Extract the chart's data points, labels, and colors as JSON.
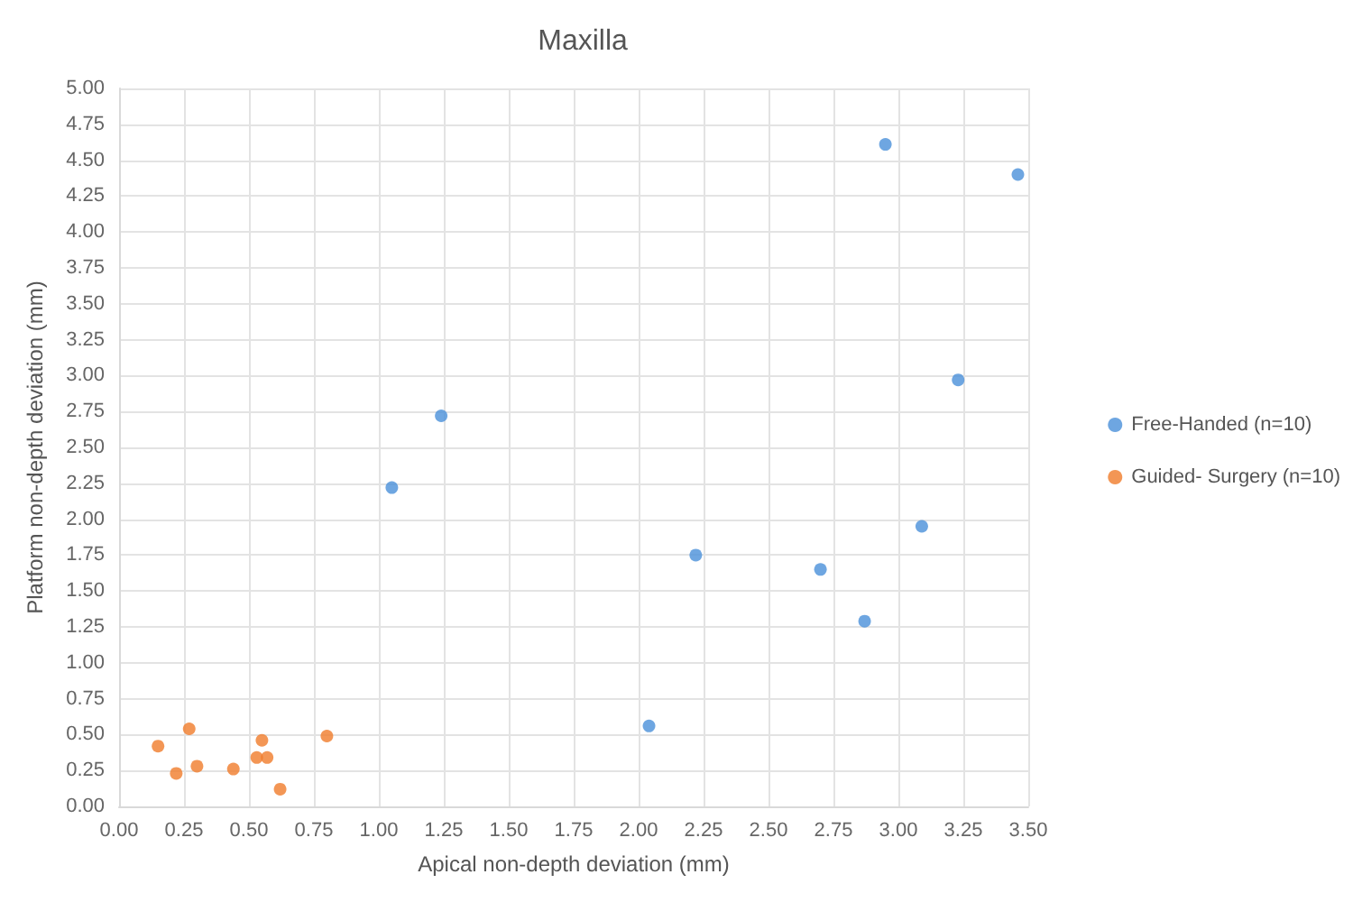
{
  "chart_data": {
    "type": "scatter",
    "title": "Maxilla",
    "xlabel": "Apical non-depth deviation (mm)",
    "ylabel": "Platform non-depth deviation (mm)",
    "series": [
      {
        "name": "Free-Handed (n=10)",
        "color": "#4a90d9",
        "x": [
          1.05,
          1.24,
          2.04,
          2.22,
          2.7,
          2.87,
          2.95,
          3.09,
          3.23,
          3.46
        ],
        "values": [
          2.22,
          2.72,
          0.56,
          1.75,
          1.65,
          1.29,
          4.61,
          1.95,
          2.97,
          4.4
        ]
      },
      {
        "name": "Guided- Surgery (n=10)",
        "color": "#f07c2a",
        "x": [
          0.15,
          0.22,
          0.27,
          0.3,
          0.44,
          0.53,
          0.55,
          0.57,
          0.62,
          0.8
        ],
        "values": [
          0.42,
          0.23,
          0.54,
          0.28,
          0.26,
          0.34,
          0.46,
          0.34,
          0.12,
          0.49
        ]
      }
    ],
    "xlim": [
      0,
      3.5
    ],
    "xticks": [
      {
        "value": 0,
        "label": "0.00"
      },
      {
        "value": 0.25,
        "label": "0.25"
      },
      {
        "value": 0.5,
        "label": "0.50"
      },
      {
        "value": 0.75,
        "label": "0.75"
      },
      {
        "value": 1,
        "label": "1.00"
      },
      {
        "value": 1.25,
        "label": "1.25"
      },
      {
        "value": 1.5,
        "label": "1.50"
      },
      {
        "value": 1.75,
        "label": "1.75"
      },
      {
        "value": 2,
        "label": "2.00"
      },
      {
        "value": 2.25,
        "label": "2.25"
      },
      {
        "value": 2.5,
        "label": "2.50"
      },
      {
        "value": 2.75,
        "label": "2.75"
      },
      {
        "value": 3,
        "label": "3.00"
      },
      {
        "value": 3.25,
        "label": "3.25"
      },
      {
        "value": 3.5,
        "label": "3.50"
      }
    ],
    "ylim": [
      0,
      5
    ],
    "yticks": [
      {
        "value": 0,
        "label": "0.00"
      },
      {
        "value": 0.25,
        "label": "0.25"
      },
      {
        "value": 0.5,
        "label": "0.50"
      },
      {
        "value": 0.75,
        "label": "0.75"
      },
      {
        "value": 1,
        "label": "1.00"
      },
      {
        "value": 1.25,
        "label": "1.25"
      },
      {
        "value": 1.5,
        "label": "1.50"
      },
      {
        "value": 1.75,
        "label": "1.75"
      },
      {
        "value": 2,
        "label": "2.00"
      },
      {
        "value": 2.25,
        "label": "2.25"
      },
      {
        "value": 2.5,
        "label": "2.50"
      },
      {
        "value": 2.75,
        "label": "2.75"
      },
      {
        "value": 3,
        "label": "3.00"
      },
      {
        "value": 3.25,
        "label": "3.25"
      },
      {
        "value": 3.5,
        "label": "3.50"
      },
      {
        "value": 3.75,
        "label": "3.75"
      },
      {
        "value": 4,
        "label": "4.00"
      },
      {
        "value": 4.25,
        "label": "4.25"
      },
      {
        "value": 4.5,
        "label": "4.50"
      },
      {
        "value": 4.75,
        "label": "4.75"
      },
      {
        "value": 5,
        "label": "5.00"
      }
    ],
    "grid": true,
    "legend": "right",
    "marker": "circle"
  }
}
